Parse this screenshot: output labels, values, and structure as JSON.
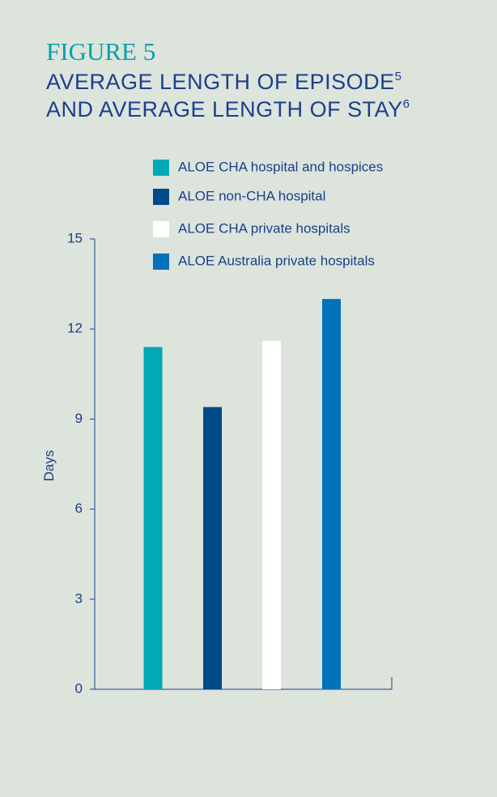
{
  "chart_data": {
    "type": "bar",
    "label": "FIGURE 5",
    "title": [
      "AVERAGE LENGTH OF EPISODE",
      "AND AVERAGE LENGTH OF STAY"
    ],
    "title_notes": [
      "5",
      "6"
    ],
    "y_label": "Days",
    "ylim": [
      0,
      15
    ],
    "yticks": [
      0,
      3,
      6,
      9,
      12,
      15
    ],
    "series": [
      {
        "name": "ALOE CHA hospital and hospices",
        "color": "#00a9b5",
        "values": [
          11.4
        ]
      },
      {
        "name": "ALOE non-CHA hospital",
        "color": "#004a8a",
        "values": [
          9.4
        ]
      },
      {
        "name": "ALOE CHA private hospitals",
        "color": "#ffffff",
        "values": [
          11.6
        ]
      },
      {
        "name": "ALOE Australia private hospitals",
        "color": "#0072bb",
        "values": [
          13
        ]
      }
    ]
  }
}
